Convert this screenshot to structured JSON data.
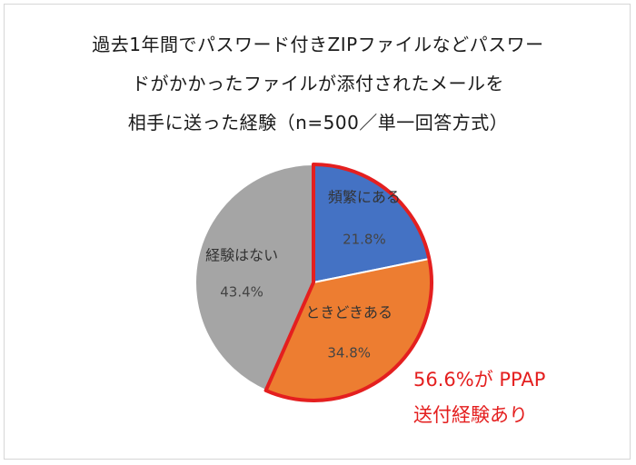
{
  "chart_data": {
    "type": "pie",
    "title_lines": [
      "過去1年間でパスワード付きZIPファイルなどパスワー",
      "ドがかかったファイルが添付されたメールを",
      "相手に送った経験（n=500／単一回答方式）"
    ],
    "slices": [
      {
        "label": "頻繁にある",
        "value": 21.8,
        "value_label": "21.8%",
        "color": "#4472c4"
      },
      {
        "label": "ときどきある",
        "value": 34.8,
        "value_label": "34.8%",
        "color": "#ed7d31"
      },
      {
        "label": "経験はない",
        "value": 43.4,
        "value_label": "43.4%",
        "color": "#a5a5a5"
      }
    ],
    "highlight": {
      "slices": [
        "頻繁にある",
        "ときどきある"
      ],
      "outline_color": "#e41f1f",
      "annotation_lines": [
        "56.6%が PPAP",
        "送付経験あり"
      ]
    }
  }
}
